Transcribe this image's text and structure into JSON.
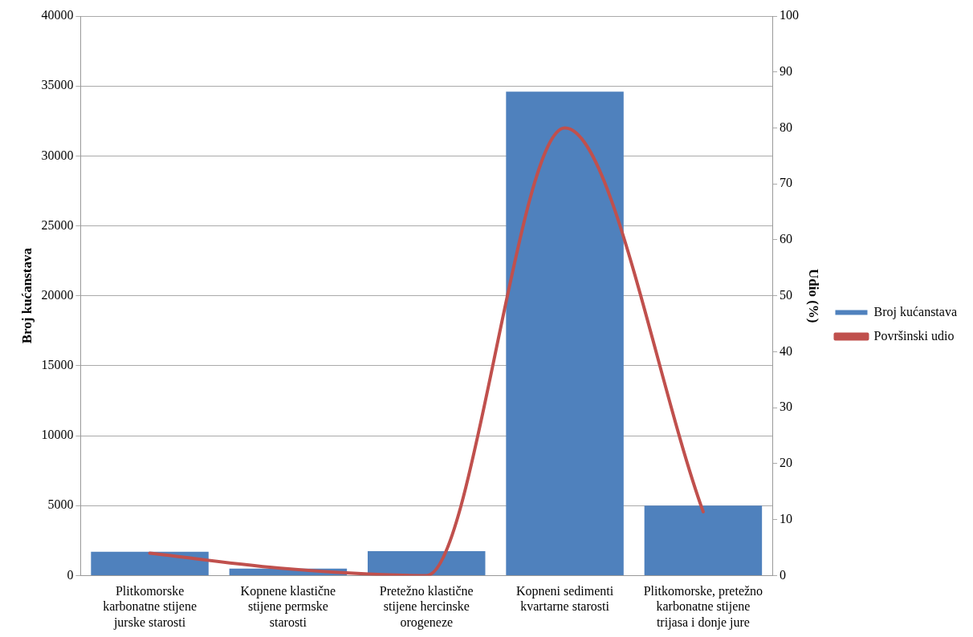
{
  "chart_data": {
    "type": "bar",
    "categories": [
      "Plitkomorske karbonatne stijene jurske starosti",
      "Kopnene klastične stijene permske starosti",
      "Pretežno klastične stijene hercinske orogeneze",
      "Kopneni sedimenti kvartarne starosti",
      "Plitkomorske, pretežno karbonatne stijene trijasa i donje jure"
    ],
    "series": [
      {
        "name": "Broj kućanstava",
        "color": "#4f81bd",
        "values": [
          1700,
          500,
          1750,
          34600,
          5000
        ]
      },
      {
        "name": "Površinski udio",
        "type": "line",
        "axis": "y2",
        "color": "#c0504d",
        "values": [
          4,
          1.2,
          0,
          80,
          11.4
        ]
      }
    ],
    "ylabel": "Broj kućanstava",
    "y2label": "Udio (%)",
    "ylim": [
      0,
      40000
    ],
    "yticks": [
      0,
      5000,
      10000,
      15000,
      20000,
      25000,
      30000,
      35000,
      40000
    ],
    "y2lim": [
      0,
      100
    ],
    "y2ticks": [
      0,
      10,
      20,
      30,
      40,
      50,
      60,
      70,
      80,
      90,
      100
    ],
    "grid": "y",
    "legend": "right",
    "marker": "none"
  }
}
